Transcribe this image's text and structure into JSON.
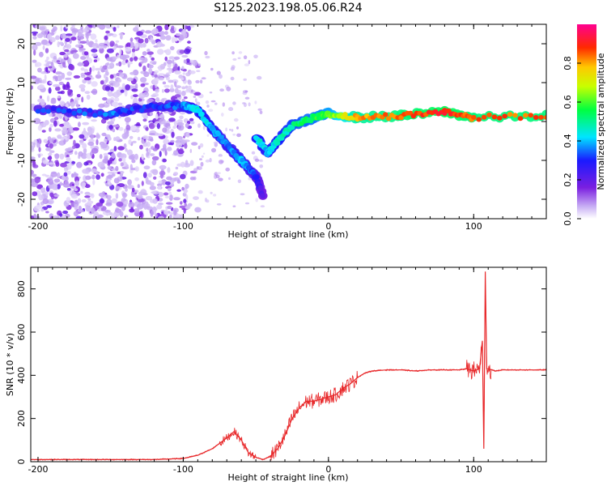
{
  "title": "S125.2023.198.05.06.R24",
  "colors": {
    "line": "#e8292b",
    "spec_low": "#cbb3f5",
    "spec_mid": "#6a0ad6"
  },
  "chart_data": [
    {
      "type": "heatmap",
      "name": "spectrogram",
      "xlabel": "Height of straight line (km)",
      "ylabel": "Frequency (Hz)",
      "xlim": [
        -205,
        150
      ],
      "ylim": [
        -25,
        25
      ],
      "xticks": [
        -200,
        -100,
        0,
        100
      ],
      "xtick_labels": [
        "-200",
        "-100",
        "0",
        "100"
      ],
      "yticks": [
        -20,
        -10,
        0,
        10,
        20
      ],
      "ytick_labels": [
        "-20",
        "-10",
        "0",
        "10",
        "20"
      ],
      "colorbar": {
        "label": "Normalized spectral amplitude",
        "range": [
          0,
          1
        ],
        "ticks": [
          0.0,
          0.2,
          0.4,
          0.6,
          0.8
        ],
        "tick_labels": [
          "0.0",
          "0.2",
          "0.4",
          "0.6",
          "0.8"
        ]
      },
      "ridge": [
        {
          "x": -200,
          "y": 3,
          "a": 0.3
        },
        {
          "x": -150,
          "y": 2,
          "a": 0.35
        },
        {
          "x": -120,
          "y": 4,
          "a": 0.3
        },
        {
          "x": -100,
          "y": 4,
          "a": 0.35
        },
        {
          "x": -90,
          "y": 3,
          "a": 0.45
        },
        {
          "x": -80,
          "y": -2,
          "a": 0.4
        },
        {
          "x": -70,
          "y": -6,
          "a": 0.35
        },
        {
          "x": -60,
          "y": -10,
          "a": 0.4
        },
        {
          "x": -50,
          "y": -14,
          "a": 0.3
        },
        {
          "x": -45,
          "y": -19,
          "a": 0.2
        },
        {
          "x": -50,
          "y": -4,
          "a": 0.45
        },
        {
          "x": -42,
          "y": -8,
          "a": 0.4
        },
        {
          "x": -35,
          "y": -5,
          "a": 0.45
        },
        {
          "x": -25,
          "y": -1,
          "a": 0.5
        },
        {
          "x": -10,
          "y": 1,
          "a": 0.55
        },
        {
          "x": 0,
          "y": 2,
          "a": 0.6
        },
        {
          "x": 20,
          "y": 1,
          "a": 0.8
        },
        {
          "x": 50,
          "y": 1.5,
          "a": 0.85
        },
        {
          "x": 80,
          "y": 2.5,
          "a": 0.9
        },
        {
          "x": 100,
          "y": 1,
          "a": 0.85
        },
        {
          "x": 150,
          "y": 1.5,
          "a": 0.85
        }
      ]
    },
    {
      "type": "line",
      "name": "snr",
      "xlabel": "Height of straight line (km)",
      "ylabel": "SNR (10 * v/v)",
      "xlim": [
        -205,
        150
      ],
      "ylim": [
        0,
        900
      ],
      "xticks": [
        -200,
        -100,
        0,
        100
      ],
      "xtick_labels": [
        "-200",
        "-100",
        "0",
        "100"
      ],
      "yticks": [
        0,
        200,
        400,
        600,
        800
      ],
      "ytick_labels": [
        "0",
        "200",
        "400",
        "600",
        "800"
      ],
      "x": [
        -205,
        -180,
        -150,
        -120,
        -100,
        -90,
        -80,
        -70,
        -65,
        -60,
        -55,
        -50,
        -45,
        -40,
        -35,
        -30,
        -25,
        -20,
        -15,
        -10,
        -5,
        0,
        5,
        10,
        15,
        20,
        25,
        30,
        40,
        50,
        60,
        70,
        80,
        90,
        95,
        100,
        104,
        106,
        107,
        108,
        109,
        110,
        115,
        120,
        130,
        140,
        150
      ],
      "y": [
        10,
        10,
        10,
        10,
        15,
        30,
        60,
        110,
        140,
        100,
        40,
        20,
        10,
        25,
        60,
        120,
        200,
        250,
        280,
        280,
        290,
        300,
        310,
        340,
        360,
        390,
        410,
        420,
        425,
        425,
        420,
        425,
        425,
        425,
        430,
        420,
        430,
        560,
        60,
        880,
        430,
        430,
        420,
        425,
        425,
        425,
        425
      ]
    }
  ]
}
